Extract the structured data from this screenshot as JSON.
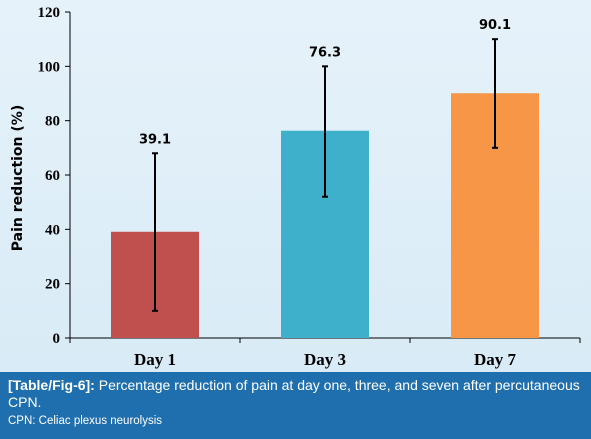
{
  "chart_data": {
    "type": "bar",
    "categories": [
      "Day 1",
      "Day 3",
      "Day 7"
    ],
    "values": [
      39.1,
      76.3,
      90.1
    ],
    "value_labels": [
      "39.1",
      "76.3",
      "90.1"
    ],
    "error_bars": [
      {
        "low": 10,
        "high": 68
      },
      {
        "low": 52,
        "high": 100
      },
      {
        "low": 70,
        "high": 110
      }
    ],
    "colors": [
      "#c0504d",
      "#3fb0cc",
      "#f79646"
    ],
    "ylabel": "Pain reduction (%)",
    "xlabel": "",
    "ylim": [
      0,
      120
    ],
    "yticks": [
      0,
      20,
      40,
      60,
      80,
      100,
      120
    ],
    "grid": false,
    "legend": "none"
  },
  "caption": {
    "label": "[Table/Fig-6]:",
    "text": " Percentage reduction of pain at day one, three, and seven after percutaneous CPN.",
    "abbreviation": "CPN: Celiac plexus neurolysis"
  },
  "colors": {
    "caption_bg": "#1f6fae",
    "panel_bg": "#ddeef8"
  }
}
